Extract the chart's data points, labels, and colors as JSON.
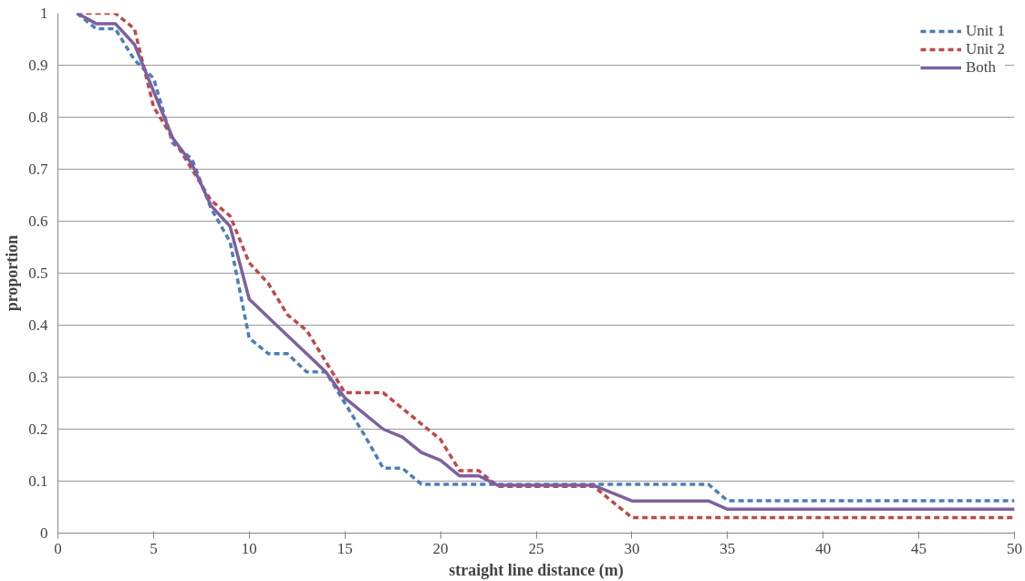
{
  "chart_data": {
    "type": "line",
    "xlabel": "straight line distance (m)",
    "ylabel": "proportion",
    "x": [
      1,
      2,
      3,
      4,
      5,
      6,
      7,
      8,
      9,
      10,
      11,
      12,
      13,
      14,
      15,
      16,
      17,
      18,
      19,
      20,
      21,
      22,
      23,
      24,
      25,
      26,
      27,
      28,
      29,
      30,
      31,
      32,
      33,
      34,
      35,
      36,
      37,
      38,
      39,
      40,
      41,
      42,
      43,
      44,
      45,
      46,
      47,
      48,
      49,
      50
    ],
    "series": [
      {
        "name": "Unit 1",
        "color": "#4a7ebb",
        "line_style": "dashed",
        "values": [
          1,
          0.97,
          0.97,
          0.91,
          0.875,
          0.75,
          0.72,
          0.625,
          0.56,
          0.375,
          0.345,
          0.345,
          0.31,
          0.31,
          0.25,
          0.19,
          0.125,
          0.125,
          0.094,
          0.094,
          0.094,
          0.094,
          0.094,
          0.094,
          0.094,
          0.094,
          0.094,
          0.094,
          0.094,
          0.094,
          0.094,
          0.094,
          0.094,
          0.094,
          0.0625,
          0.0625,
          0.0625,
          0.0625,
          0.0625,
          0.0625,
          0.0625,
          0.0625,
          0.0625,
          0.0625,
          0.0625,
          0.0625,
          0.0625,
          0.0625,
          0.0625,
          0.0625
        ]
      },
      {
        "name": "Unit 2",
        "color": "#be4b48",
        "line_style": "dashed",
        "values": [
          1,
          1,
          1,
          0.97,
          0.82,
          0.76,
          0.7,
          0.64,
          0.61,
          0.52,
          0.48,
          0.42,
          0.39,
          0.33,
          0.27,
          0.27,
          0.27,
          0.24,
          0.21,
          0.18,
          0.12,
          0.12,
          0.09,
          0.09,
          0.09,
          0.09,
          0.09,
          0.09,
          0.06,
          0.03,
          0.03,
          0.03,
          0.03,
          0.03,
          0.03,
          0.03,
          0.03,
          0.03,
          0.03,
          0.03,
          0.03,
          0.03,
          0.03,
          0.03,
          0.03,
          0.03,
          0.03,
          0.03,
          0.03,
          0.03
        ]
      },
      {
        "name": "Both",
        "color": "#7d60a0",
        "line_style": "solid",
        "values": [
          1,
          0.98,
          0.98,
          0.94,
          0.85,
          0.76,
          0.71,
          0.63,
          0.59,
          0.45,
          0.415,
          0.38,
          0.345,
          0.31,
          0.26,
          0.23,
          0.2,
          0.185,
          0.155,
          0.14,
          0.11,
          0.11,
          0.092,
          0.092,
          0.092,
          0.092,
          0.092,
          0.092,
          0.077,
          0.062,
          0.062,
          0.062,
          0.062,
          0.062,
          0.046,
          0.046,
          0.046,
          0.046,
          0.046,
          0.046,
          0.046,
          0.046,
          0.046,
          0.046,
          0.046,
          0.046,
          0.046,
          0.046,
          0.046,
          0.046
        ]
      }
    ],
    "xlim": [
      0,
      50
    ],
    "xticks": [
      0,
      5,
      10,
      15,
      20,
      25,
      30,
      35,
      40,
      45,
      50
    ],
    "ylim": [
      0,
      1
    ],
    "yticks": [
      0,
      0.1,
      0.2,
      0.3,
      0.4,
      0.5,
      0.6,
      0.7,
      0.8,
      0.9,
      1
    ],
    "grid": "y",
    "legend": "top right",
    "marker": "none"
  }
}
